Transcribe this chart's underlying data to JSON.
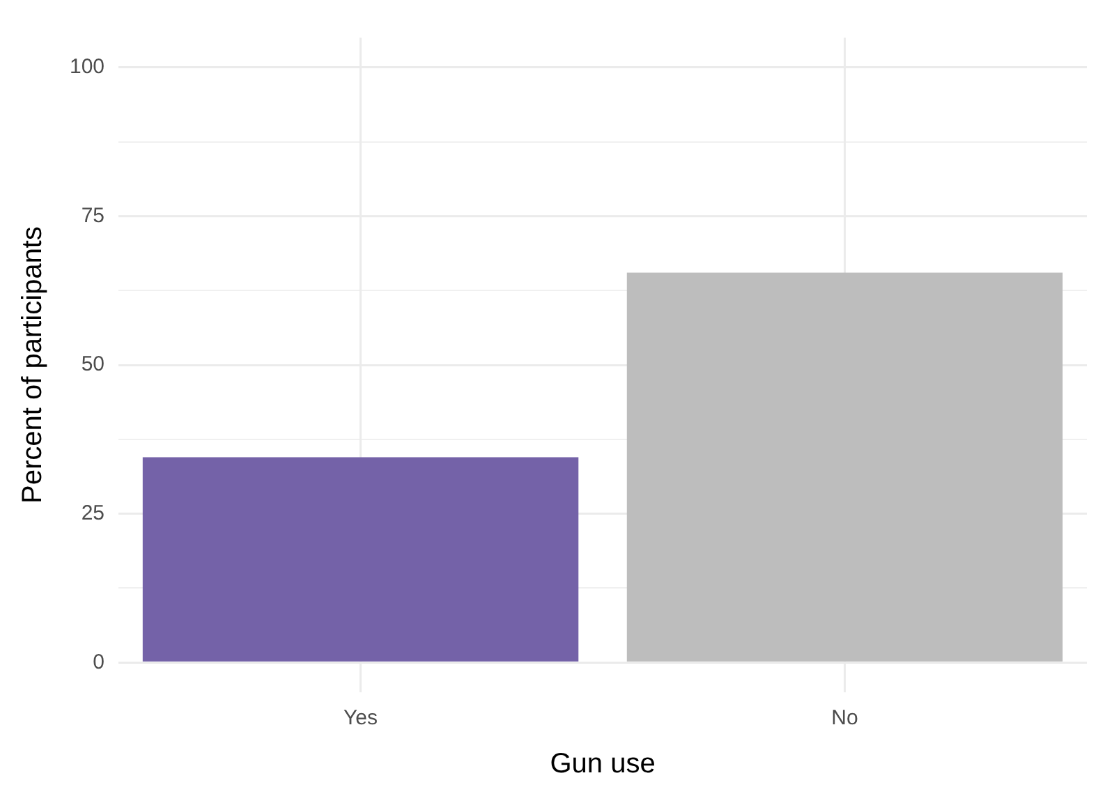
{
  "chart_data": {
    "type": "bar",
    "xlabel": "Gun use",
    "ylabel": "Percent of participants",
    "categories": [
      "Yes",
      "No"
    ],
    "values": [
      34.5,
      65.5
    ],
    "colors": [
      "#7462a8",
      "#bdbdbd"
    ],
    "ylim": [
      -5,
      105
    ],
    "yticks": [
      0,
      {
        "value": 12.5,
        "label": null
      },
      25,
      {
        "value": 37.5,
        "label": null
      },
      50,
      {
        "value": 62.5,
        "label": null
      },
      75,
      {
        "value": 87.5,
        "label": null
      },
      100
    ],
    "grid": true
  }
}
